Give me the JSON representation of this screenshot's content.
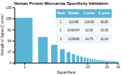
{
  "chart_data": {
    "type": "bar",
    "title": "Human Protein Microarray Specificity Validation",
    "xlabel": "Signal Rank",
    "ylabel": "Strength of Signal (Z score)",
    "x": [
      1,
      2,
      3,
      4,
      5,
      6,
      7,
      8,
      9,
      10,
      11,
      12,
      13,
      14,
      15,
      16,
      17,
      18,
      19,
      20,
      21,
      22,
      23,
      24,
      25,
      26,
      27,
      28,
      29,
      30
    ],
    "values": [
      109.69,
      62.83,
      43.75,
      33.0,
      26.0,
      21.0,
      17.5,
      15.0,
      13.0,
      11.5,
      10.2,
      9.1,
      8.3,
      7.6,
      7.0,
      6.5,
      6.1,
      5.7,
      5.4,
      5.1,
      4.8,
      4.6,
      4.4,
      4.2,
      4.0,
      3.8,
      3.7,
      3.5,
      3.4,
      3.2
    ],
    "color": "#5ab4d6",
    "log": "x",
    "xlim": [
      0.7,
      30
    ],
    "xticks": [
      1,
      10,
      20,
      30
    ],
    "ylim": [
      0,
      135
    ],
    "yticks": [
      0,
      27,
      54,
      81,
      108,
      135
    ],
    "table": {
      "headers": [
        "Rank",
        "Protein",
        "Z score",
        "S score"
      ],
      "rows": [
        [
          "1",
          "S100B",
          "109.69",
          "46.86"
        ],
        [
          "2",
          "ENSA/H",
          "62.83",
          "19.08"
        ],
        [
          "3",
          "GORAB",
          "43.75",
          "32.64"
        ]
      ]
    }
  }
}
